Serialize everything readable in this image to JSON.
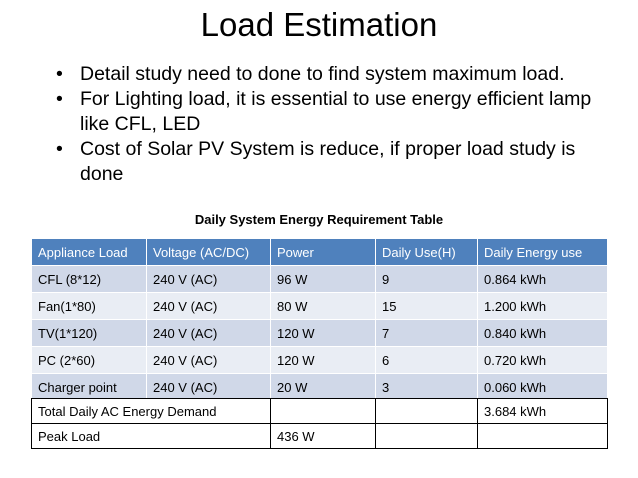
{
  "slide": {
    "title": "Load Estimation",
    "bullets": [
      "Detail study need to done to find system maximum load.",
      "For Lighting load, it is essential to use energy efficient lamp like CFL, LED",
      "Cost of Solar PV System is reduce, if proper load study is done"
    ]
  },
  "table": {
    "caption": "Daily System Energy Requirement Table",
    "headers": [
      "Appliance Load",
      "Voltage (AC/DC)",
      "Power",
      "Daily Use(H)",
      "Daily Energy use"
    ],
    "rows": [
      [
        "CFL (8*12)",
        "240 V (AC)",
        "96 W",
        "9",
        "0.864 kWh"
      ],
      [
        "Fan(1*80)",
        "240 V (AC)",
        "80 W",
        "15",
        "1.200 kWh"
      ],
      [
        "TV(1*120)",
        "240 V (AC)",
        "120 W",
        "7",
        "0.840 kWh"
      ],
      [
        "PC (2*60)",
        "240 V (AC)",
        "120 W",
        "6",
        "0.720 kWh"
      ],
      [
        "Charger point",
        "240 V (AC)",
        "20 W",
        "3",
        "0.060 kWh"
      ]
    ],
    "colors": {
      "header_bg": "#4f81bd",
      "row_odd": "#d0d8e8",
      "row_even": "#e9edf4"
    }
  },
  "summary": {
    "total_label": "Total Daily AC Energy Demand",
    "total_value": "3.684 kWh",
    "peak_label": "Peak Load",
    "peak_value": "436 W"
  }
}
